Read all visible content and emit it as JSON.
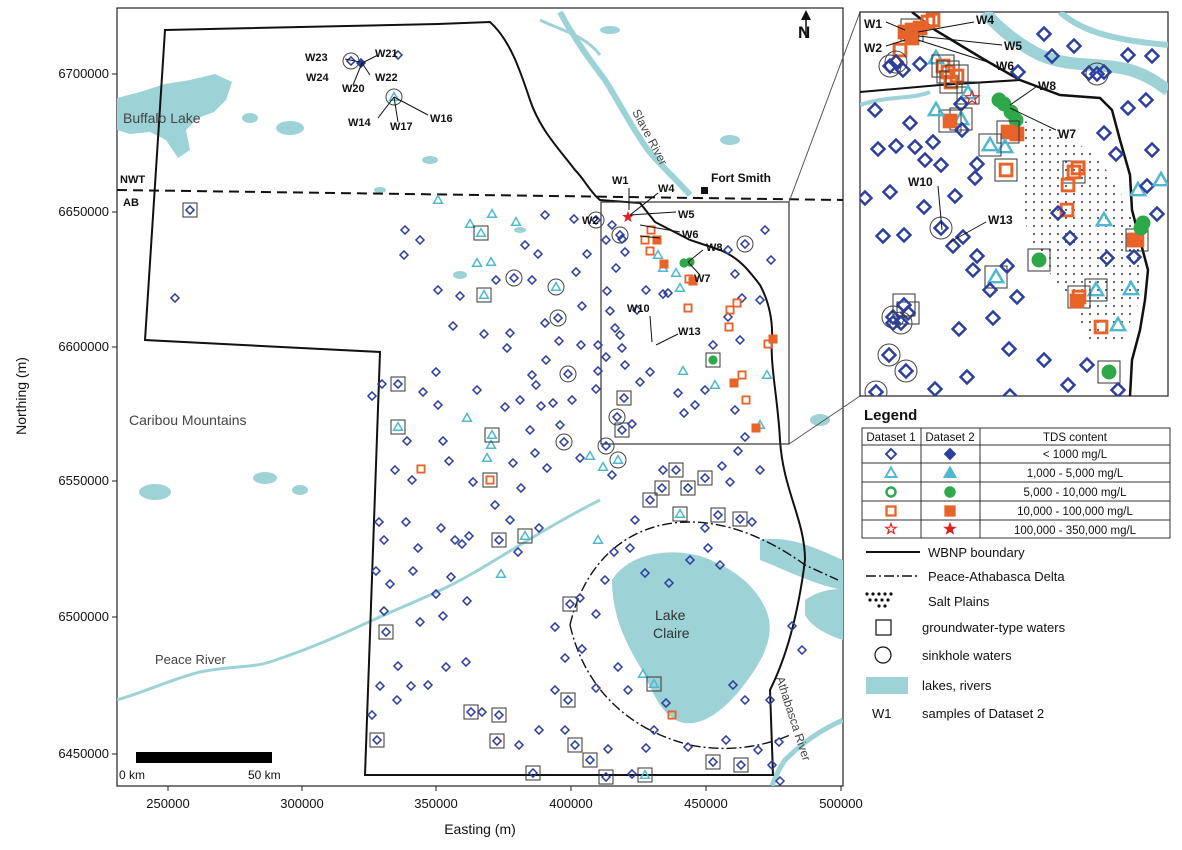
{
  "axes": {
    "xlabel": "Easting (m)",
    "ylabel": "Northing (m)",
    "x_ticks": [
      "250000",
      "300000",
      "350000",
      "400000",
      "450000",
      "500000"
    ],
    "y_ticks": [
      "6450000",
      "6500000",
      "6550000",
      "6600000",
      "6650000",
      "6700000"
    ]
  },
  "map_labels": {
    "buffalo_lake": "Buffalo Lake",
    "caribou_mountains": "Caribou Mountains",
    "peace_river": "Peace River",
    "slave_river": "Slave River",
    "fort_smith": "Fort Smith",
    "lake_claire_line1": "Lake",
    "lake_claire_line2": "Claire",
    "athabasca_river": "Athabasca River",
    "nwt": "NWT",
    "ab": "AB",
    "north": "N"
  },
  "scale_bar": {
    "left": "0 km",
    "right": "50 km"
  },
  "north_sites": [
    "W23",
    "W21",
    "W24",
    "W20",
    "W22",
    "W14",
    "W17",
    "W16"
  ],
  "main_sites": [
    "W1",
    "W4",
    "W2",
    "W5",
    "W6",
    "W8",
    "W7",
    "W10",
    "W13"
  ],
  "inset_sites": [
    "W1",
    "W4",
    "W2",
    "W5",
    "W6",
    "W8",
    "W7",
    "W10",
    "W13"
  ],
  "legend": {
    "title": "Legend",
    "headers": [
      "Dataset 1",
      "Dataset 2",
      "TDS content"
    ],
    "rows": [
      {
        "range": "< 1000 mg/L",
        "symbol": "diamond",
        "color": "#2c3e9f"
      },
      {
        "range": "1,000 - 5,000 mg/L",
        "symbol": "triangle",
        "color": "#4fb8d0"
      },
      {
        "range": "5,000 - 10,000 mg/L",
        "symbol": "circle",
        "color": "#2fa84a"
      },
      {
        "range": "10,000 - 100,000 mg/L",
        "symbol": "square",
        "color": "#e8632a"
      },
      {
        "range": "100,000 - 350,000 mg/L",
        "symbol": "star",
        "color": "#e02020"
      }
    ],
    "items": [
      {
        "symbol": "solid-line",
        "label": "WBNP boundary"
      },
      {
        "symbol": "dash-dot-line",
        "label": "Peace-Athabasca Delta"
      },
      {
        "symbol": "dots",
        "label": "Salt Plains"
      },
      {
        "symbol": "open-square",
        "label": "groundwater-type waters"
      },
      {
        "symbol": "open-circle",
        "label": "sinkhole waters"
      },
      {
        "symbol": "lake-swatch",
        "label": "lakes, rivers"
      },
      {
        "symbol": "sample-id",
        "sample": "W1",
        "label": "samples of Dataset 2"
      }
    ]
  },
  "colors": {
    "water": "#9dd3d6",
    "dataset1_blue": "#2c3e9f",
    "cyan": "#4fb8d0",
    "green": "#2fa84a",
    "orange": "#e8632a",
    "red": "#e02020"
  }
}
